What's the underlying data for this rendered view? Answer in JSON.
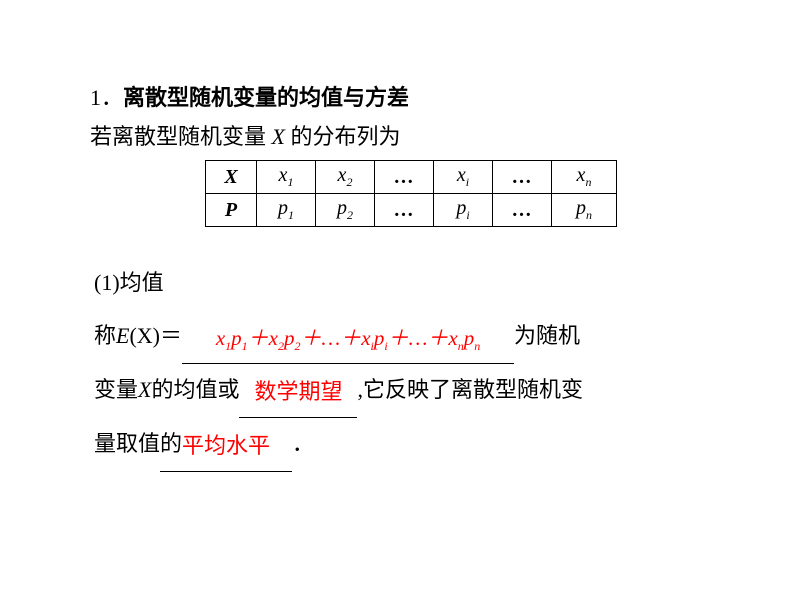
{
  "heading_num": "1．",
  "heading_bold": "离散型随机变量的均值与方差",
  "subline_a": "若离散型随机变量 ",
  "subline_var": "X",
  "subline_b": " 的分布列为",
  "table": {
    "r1h": "X",
    "r1": [
      "x",
      "x",
      "…",
      "x",
      "…",
      "x"
    ],
    "r1sub": [
      "1",
      "2",
      "",
      "i",
      "",
      "n"
    ],
    "r2h": "P",
    "r2": [
      "p",
      "p",
      "…",
      "p",
      "…",
      "p"
    ],
    "r2sub": [
      "1",
      "2",
      "",
      "i",
      "",
      "n"
    ]
  },
  "line1": "(1)均值",
  "line2a": "称",
  "line2e": "E",
  "line2x": "(X)",
  "line2eq": "＝",
  "formula_parts": {
    "x": "x",
    "p": "p",
    "plus": "＋",
    "dots": "…",
    "s1": "1",
    "s2": "2",
    "si": "i",
    "sn": "n"
  },
  "line2b": "为随机",
  "line3a": "变量",
  "line3x": "X",
  "line3b": "的均值或",
  "ans2": "数学期望",
  "line3c": ",它反映了离散型随机变",
  "line4a": "量取值的",
  "ans3": "平均水平",
  "line4b": "．"
}
